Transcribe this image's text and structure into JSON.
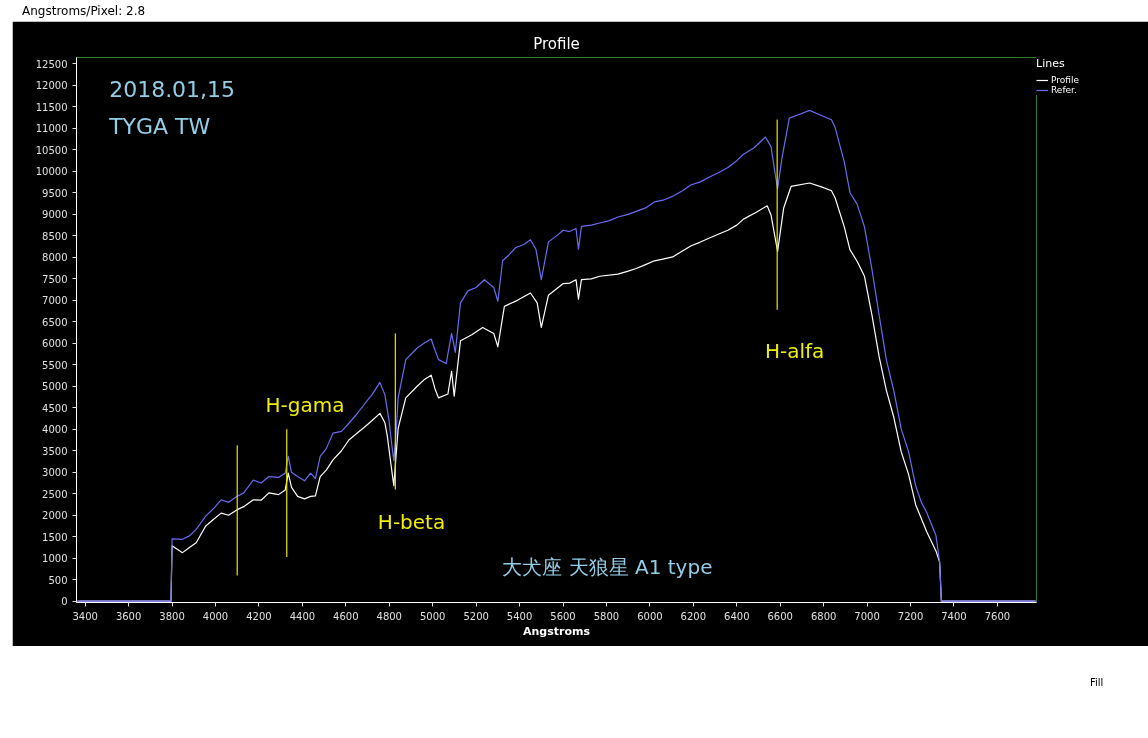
{
  "chart_data": {
    "type": "line",
    "title": "Profile",
    "xlabel": "Angstroms",
    "legend_title": "Lines",
    "legend": "top right",
    "xlim": [
      3360,
      7780
    ],
    "xticks": [
      3400,
      3600,
      3800,
      4000,
      4200,
      4400,
      4600,
      4800,
      5000,
      5200,
      5400,
      5600,
      5800,
      6000,
      6200,
      6400,
      6600,
      6800,
      7000,
      7200,
      7400,
      7600
    ],
    "ylim": [
      -30,
      12650
    ],
    "yticks": [
      0,
      500,
      1000,
      1500,
      2000,
      2500,
      3000,
      3500,
      4000,
      4500,
      5000,
      5500,
      6000,
      6500,
      7000,
      7500,
      8000,
      8500,
      9000,
      9500,
      10000,
      10500,
      11000,
      11500,
      12000,
      12500
    ],
    "series": [
      {
        "name": "Profile",
        "color": "#ffffff",
        "x": [
          3364,
          3795,
          3800,
          3848,
          3880,
          3911,
          3955,
          3990,
          4026,
          4060,
          4100,
          4130,
          4174,
          4210,
          4246,
          4290,
          4321,
          4335,
          4350,
          4378,
          4410,
          4438,
          4460,
          4482,
          4510,
          4541,
          4580,
          4614,
          4650,
          4688,
          4720,
          4757,
          4780,
          4791,
          4810,
          4821,
          4830,
          4841,
          4876,
          4926,
          4960,
          4993,
          5010,
          5027,
          5070,
          5087,
          5099,
          5128,
          5180,
          5230,
          5281,
          5300,
          5330,
          5390,
          5450,
          5481,
          5500,
          5533,
          5601,
          5630,
          5660,
          5671,
          5685,
          5730,
          5769,
          5853,
          5900,
          5937,
          5980,
          6021,
          6060,
          6105,
          6150,
          6190,
          6230,
          6274,
          6320,
          6359,
          6400,
          6431,
          6490,
          6540,
          6558,
          6575,
          6588,
          6616,
          6650,
          6735,
          6790,
          6836,
          6853,
          6895,
          6921,
          6954,
          6988,
          7022,
          7055,
          7089,
          7123,
          7157,
          7191,
          7224,
          7275,
          7317,
          7334,
          7342,
          7776
        ],
        "values": [
          0,
          0,
          1290,
          1130,
          1250,
          1360,
          1750,
          1900,
          2050,
          2000,
          2130,
          2200,
          2360,
          2350,
          2520,
          2480,
          2590,
          2980,
          2650,
          2440,
          2380,
          2440,
          2450,
          2900,
          3050,
          3290,
          3500,
          3750,
          3900,
          4060,
          4200,
          4370,
          4150,
          3840,
          3100,
          2690,
          3300,
          4020,
          4730,
          4990,
          5150,
          5260,
          4950,
          4730,
          4820,
          5350,
          4770,
          6060,
          6200,
          6370,
          6230,
          5920,
          6860,
          7000,
          7170,
          6940,
          6370,
          7120,
          7390,
          7400,
          7480,
          7030,
          7480,
          7500,
          7560,
          7610,
          7680,
          7740,
          7830,
          7920,
          7960,
          8010,
          8150,
          8270,
          8350,
          8450,
          8550,
          8630,
          8750,
          8890,
          9050,
          9200,
          8980,
          8500,
          8140,
          9150,
          9650,
          9730,
          9640,
          9550,
          9380,
          8710,
          8180,
          7910,
          7560,
          6670,
          5700,
          4900,
          4280,
          3480,
          2950,
          2240,
          1610,
          1170,
          910,
          0,
          0
        ]
      },
      {
        "name": "Refer.",
        "color": "#6b6bef",
        "x": [
          3364,
          3795,
          3800,
          3848,
          3880,
          3911,
          3955,
          3990,
          4026,
          4060,
          4100,
          4130,
          4174,
          4210,
          4246,
          4290,
          4321,
          4335,
          4350,
          4378,
          4410,
          4438,
          4460,
          4482,
          4510,
          4541,
          4580,
          4614,
          4650,
          4688,
          4720,
          4757,
          4780,
          4799,
          4810,
          4821,
          4830,
          4841,
          4876,
          4926,
          4960,
          4993,
          5010,
          5027,
          5062,
          5087,
          5104,
          5128,
          5162,
          5200,
          5238,
          5281,
          5300,
          5322,
          5350,
          5383,
          5420,
          5450,
          5475,
          5500,
          5533,
          5570,
          5601,
          5630,
          5660,
          5671,
          5685,
          5730,
          5769,
          5810,
          5853,
          5900,
          5937,
          5980,
          6021,
          6060,
          6105,
          6150,
          6190,
          6230,
          6274,
          6320,
          6359,
          6400,
          6431,
          6480,
          6532,
          6558,
          6575,
          6588,
          6608,
          6642,
          6690,
          6735,
          6790,
          6836,
          6853,
          6875,
          6895,
          6921,
          6954,
          6988,
          7022,
          7055,
          7089,
          7123,
          7157,
          7191,
          7224,
          7250,
          7275,
          7317,
          7334,
          7342,
          7776
        ],
        "values": [
          0,
          0,
          1450,
          1440,
          1520,
          1670,
          1980,
          2150,
          2360,
          2300,
          2440,
          2520,
          2820,
          2750,
          2900,
          2880,
          2980,
          3370,
          3000,
          2900,
          2800,
          2980,
          2850,
          3370,
          3550,
          3910,
          3950,
          4140,
          4350,
          4600,
          4800,
          5090,
          4800,
          4200,
          3700,
          3270,
          3800,
          4730,
          5620,
          5880,
          6000,
          6100,
          5850,
          5620,
          5530,
          6230,
          5790,
          6940,
          7220,
          7300,
          7480,
          7300,
          6980,
          7920,
          8050,
          8230,
          8300,
          8410,
          8190,
          7480,
          8360,
          8500,
          8630,
          8600,
          8670,
          8190,
          8720,
          8750,
          8800,
          8850,
          8940,
          9000,
          9070,
          9150,
          9290,
          9330,
          9420,
          9550,
          9690,
          9750,
          9870,
          9980,
          10090,
          10250,
          10400,
          10550,
          10800,
          10570,
          10000,
          9600,
          10310,
          11240,
          11330,
          11420,
          11300,
          11200,
          11020,
          10600,
          10220,
          9510,
          9240,
          8710,
          7730,
          6670,
          5610,
          4900,
          4010,
          3480,
          2680,
          2300,
          2060,
          1530,
          910,
          0,
          0
        ]
      },
      {
        "color": "#e6e600",
        "x": [
          4100,
          4100
        ],
        "values": [
          3630,
          600
        ]
      },
      {
        "color": "#e6e600",
        "x": [
          4328,
          4328
        ],
        "values": [
          4000,
          1030
        ]
      },
      {
        "color": "#e6e600",
        "x": [
          4828,
          4828
        ],
        "values": [
          6230,
          2600
        ]
      },
      {
        "color": "#e6e600",
        "x": [
          6586,
          6586
        ],
        "values": [
          11210,
          6780
        ]
      }
    ],
    "annotations": [
      "Angstroms/Pixel: 2.8",
      "2018.01,15",
      "TYGA TW",
      "大犬座 天狼星 A1 type",
      "H-gama",
      "H-beta",
      "H-alfa",
      "Fill"
    ]
  }
}
